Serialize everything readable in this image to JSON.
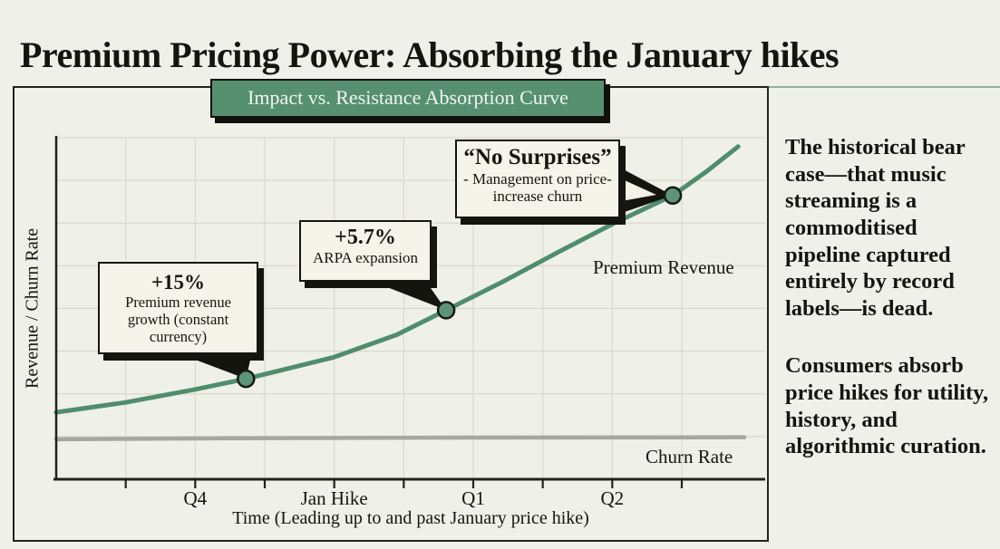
{
  "page": {
    "title": "Premium Pricing Power: Absorbing the January hikes"
  },
  "chart_data": {
    "type": "line",
    "title": "Impact vs. Resistance Absorption Curve",
    "xlabel": "Time (Leading up to and past January price hike)",
    "ylabel": "Revenue / Churn Rate",
    "xlim": [
      0,
      10.2
    ],
    "ylim": [
      0,
      100
    ],
    "grid": true,
    "xticks": [
      1,
      2,
      3,
      4,
      5,
      6,
      7,
      8,
      9
    ],
    "xtick_labels": [
      {
        "x": 2,
        "label": "Q4"
      },
      {
        "x": 4,
        "label": "Jan Hike"
      },
      {
        "x": 6,
        "label": "Q1"
      },
      {
        "x": 8,
        "label": "Q2"
      }
    ],
    "ygrid": [
      12.5,
      25,
      37.5,
      50,
      62.5,
      75,
      87.5,
      100
    ],
    "series": [
      {
        "name": "Premium Revenue",
        "color": "#4f8d6d",
        "width": 5,
        "x": [
          0,
          1.0,
          2.0,
          2.73,
          3.99,
          4.9,
          5.61,
          6.46,
          7.24,
          8.02,
          8.87,
          9.35,
          9.81
        ],
        "y": [
          19.6,
          22.5,
          26.3,
          29.4,
          35.7,
          42.3,
          49.5,
          58.2,
          66.7,
          74.9,
          83.1,
          90.0,
          97.4
        ],
        "markers": [
          {
            "x": 2.73,
            "y": 29.4
          },
          {
            "x": 5.61,
            "y": 49.5
          },
          {
            "x": 8.87,
            "y": 83.1
          }
        ]
      },
      {
        "name": "Churn Rate",
        "color": "#a6a6a2",
        "width": 4.5,
        "x": [
          0,
          2.5,
          6,
          9.9
        ],
        "y": [
          11.7,
          12.0,
          12.2,
          12.3
        ],
        "markers": []
      }
    ],
    "annotations": [
      {
        "title": "+15%",
        "body": "Premium revenue growth (constant currency)",
        "target": {
          "x": 2.73,
          "y": 29.4
        }
      },
      {
        "title": "+5.7%",
        "body": "ARPA expansion",
        "target": {
          "x": 5.61,
          "y": 49.5
        }
      },
      {
        "title": "“No Surprises”",
        "body": "- Management on price-increase churn",
        "target": {
          "x": 8.87,
          "y": 83.1
        }
      }
    ]
  },
  "sidebar": {
    "para1": "The historical bear case—that music streaming is a commoditised pipeline captured entirely by record labels—is dead.",
    "para2": "Consumers absorb price hikes for utility, history, and algorithmic curation."
  },
  "colors": {
    "premium_line": "#4f8d6d",
    "churn_line": "#a6a6a2",
    "marker_fill": "#5d9377",
    "badge_bg": "#569070",
    "ink": "#15150f",
    "background": "#eff0e8"
  }
}
